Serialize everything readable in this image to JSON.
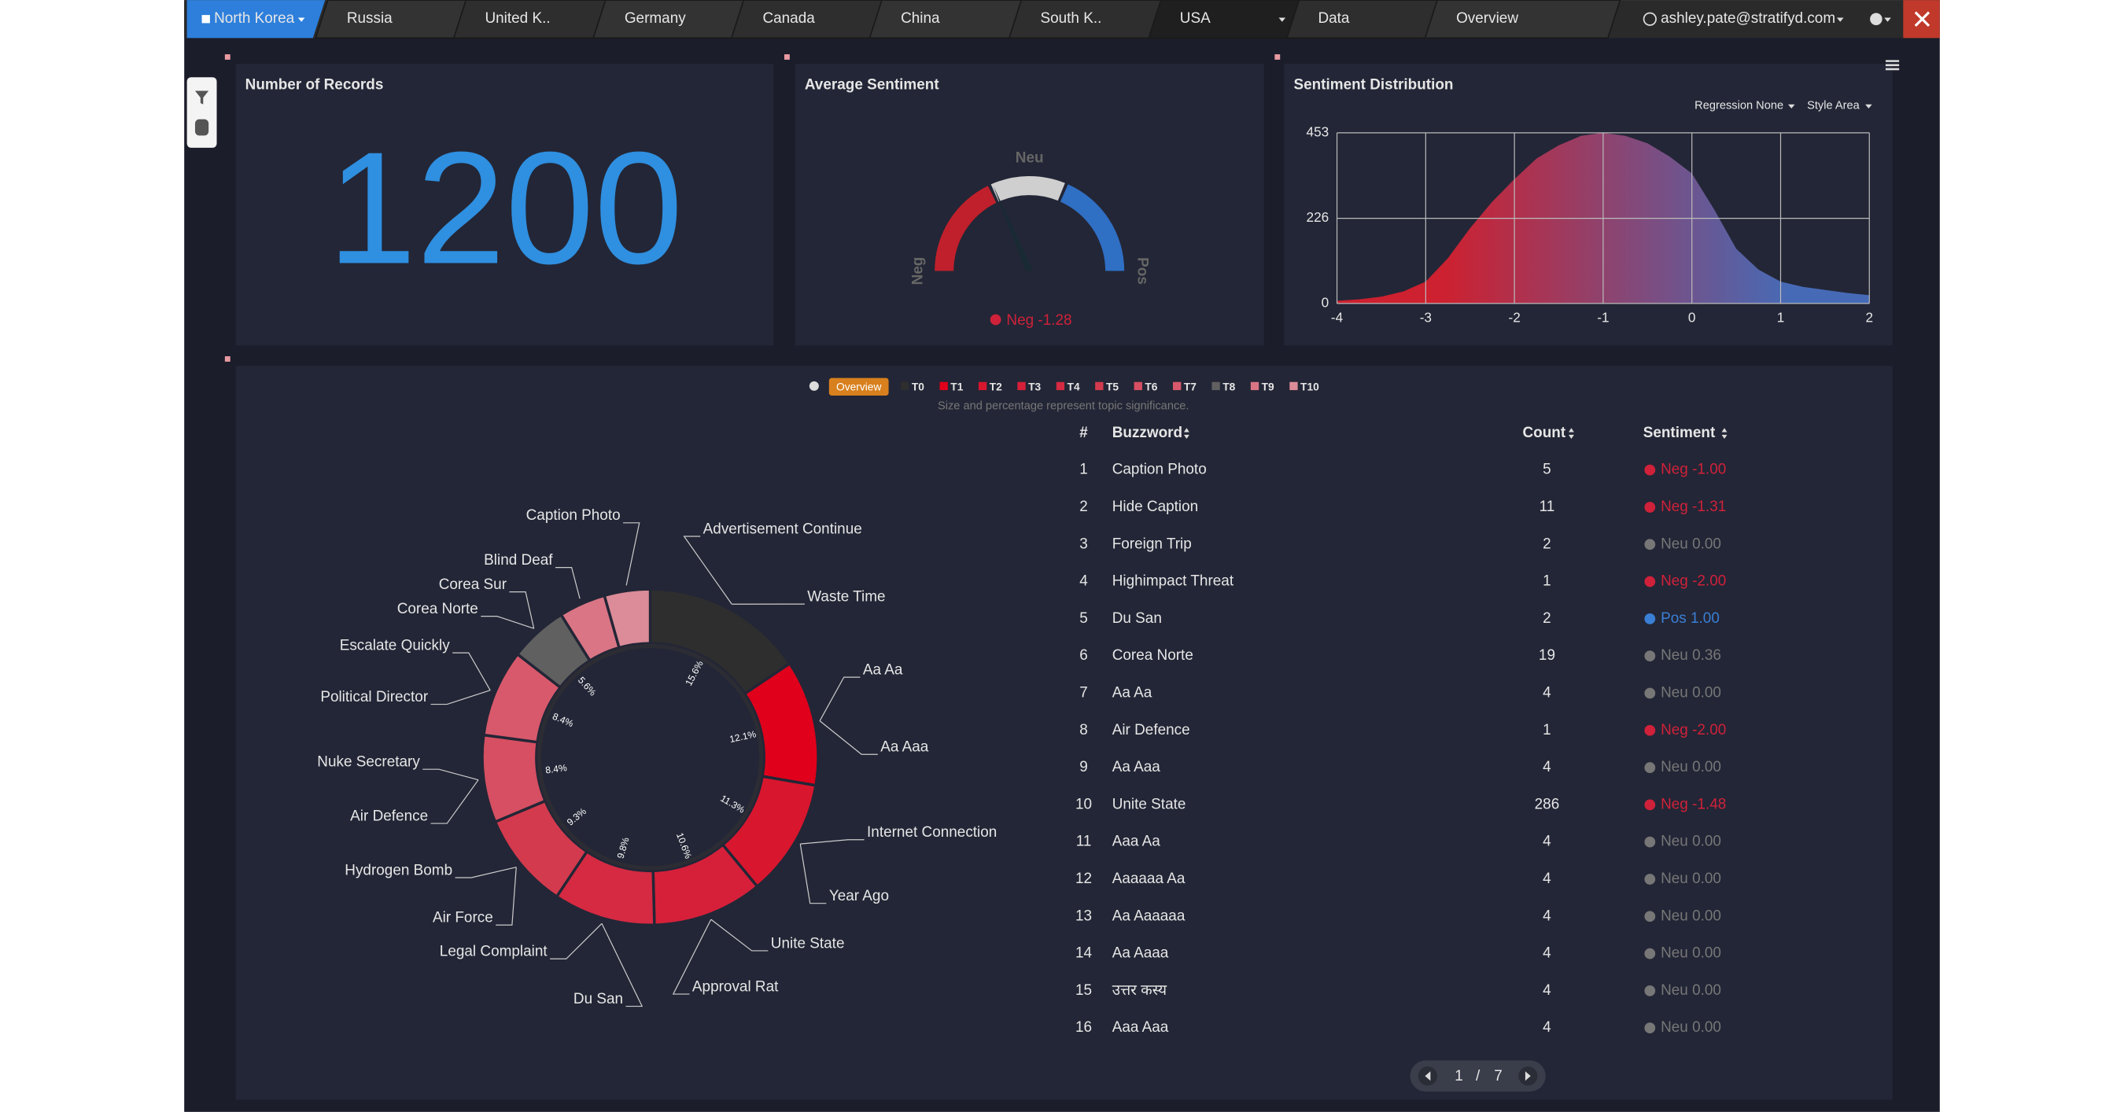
{
  "nav": {
    "tabs": [
      "North Korea",
      "Russia",
      "United K..",
      "Germany",
      "Canada",
      "China",
      "South K..",
      "USA",
      "Data",
      "Overview"
    ],
    "user": "ashley.pate@stratifyd.com"
  },
  "records": {
    "title": "Number of Records",
    "value": 1200
  },
  "gauge": {
    "title": "Average Sentiment",
    "labels": [
      "Neg",
      "Neu",
      "Pos"
    ],
    "value": -1.28,
    "value_label": "Neg -1.28",
    "range": [
      -5,
      5
    ]
  },
  "chart_data": [
    {
      "type": "area",
      "title": "Sentiment Distribution",
      "controls": [
        "Regression None",
        "Style Area"
      ],
      "x": [
        -4,
        -3.75,
        -3.5,
        -3.25,
        -3,
        -2.75,
        -2.5,
        -2.25,
        -2,
        -1.75,
        -1.5,
        -1.25,
        -1,
        -0.75,
        -0.5,
        -0.25,
        0,
        0.25,
        0.5,
        0.75,
        1,
        1.25,
        1.5,
        1.75,
        2
      ],
      "values": [
        7,
        11,
        18,
        32,
        58,
        120,
        200,
        270,
        330,
        385,
        420,
        445,
        453,
        445,
        425,
        390,
        345,
        250,
        145,
        90,
        58,
        44,
        36,
        28,
        22
      ],
      "colors": [
        "#e0202f",
        "#4a72c4"
      ],
      "xlim": [
        -4,
        2
      ],
      "xticks": [
        -4,
        -3,
        -2,
        -1,
        0,
        1,
        2
      ],
      "ylim": [
        0,
        453
      ],
      "yticks": [
        0,
        226,
        453
      ],
      "grid": true
    },
    {
      "type": "donut",
      "legend_title": "Overview",
      "note": "Size and percentage represent topic significance.",
      "categories": [
        "T0",
        "T1",
        "T2",
        "T3",
        "T4",
        "T5",
        "T6",
        "T7",
        "T8",
        "T9",
        "T10"
      ],
      "values": [
        15.6,
        12.1,
        11.3,
        10.6,
        9.8,
        9.3,
        8.4,
        8.4,
        5.6,
        4.5,
        4.4
      ],
      "value_labels": [
        "15.6%",
        "12.1%",
        "11.3%",
        "10.6%",
        "9.8%",
        "9.3%",
        "8.4%",
        "8.4%",
        "5.6%",
        null,
        null
      ],
      "colors": [
        "#2e2e2e",
        "#e0001b",
        "#d8162e",
        "#d6203a",
        "#d52a42",
        "#d43a4d",
        "#d64f62",
        "#d8596b",
        "#606060",
        "#d97585",
        "#db8c98"
      ],
      "keywords": [
        [
          "Advertisement Continue",
          "Waste Time"
        ],
        [
          "Aa Aa",
          "Aa Aaa"
        ],
        [
          "Internet Connection",
          "Year Ago"
        ],
        [
          "Unite State",
          "Approval Rat"
        ],
        [
          "Du San",
          "Legal Complaint"
        ],
        [
          "Air Force",
          "Hydrogen Bomb"
        ],
        [
          "Air Defence",
          "Nuke Secretary"
        ],
        [
          "Political Director",
          "Escalate Quickly"
        ],
        [
          "Corea Norte",
          "Corea Sur"
        ],
        [
          "Blind Deaf"
        ],
        [
          "Caption Photo"
        ]
      ]
    }
  ],
  "table": {
    "columns": [
      "#",
      "Buzzword",
      "Count",
      "Sentiment"
    ],
    "rows": [
      [
        1,
        "Caption Photo",
        5,
        "Neg -1.00"
      ],
      [
        2,
        "Hide Caption",
        11,
        "Neg -1.31"
      ],
      [
        3,
        "Foreign Trip",
        2,
        "Neu 0.00"
      ],
      [
        4,
        "Highimpact Threat",
        1,
        "Neg -2.00"
      ],
      [
        5,
        "Du San",
        2,
        "Pos 1.00"
      ],
      [
        6,
        "Corea Norte",
        19,
        "Neu 0.36"
      ],
      [
        7,
        "Aa Aa",
        4,
        "Neu 0.00"
      ],
      [
        8,
        "Air Defence",
        1,
        "Neg -2.00"
      ],
      [
        9,
        "Aa Aaa",
        4,
        "Neu 0.00"
      ],
      [
        10,
        "Unite State",
        286,
        "Neg -1.48"
      ],
      [
        11,
        "Aaa Aa",
        4,
        "Neu 0.00"
      ],
      [
        12,
        "Aaaaaa Aa",
        4,
        "Neu 0.00"
      ],
      [
        13,
        "Aa Aaaaaa",
        4,
        "Neu 0.00"
      ],
      [
        14,
        "Aa Aaaa",
        4,
        "Neu 0.00"
      ],
      [
        15,
        "उत्तर कस्य",
        4,
        "Neu 0.00"
      ],
      [
        16,
        "Aaa Aaa",
        4,
        "Neu 0.00"
      ]
    ]
  },
  "pagination": {
    "page": 1,
    "separator": "/",
    "pages": 7
  }
}
